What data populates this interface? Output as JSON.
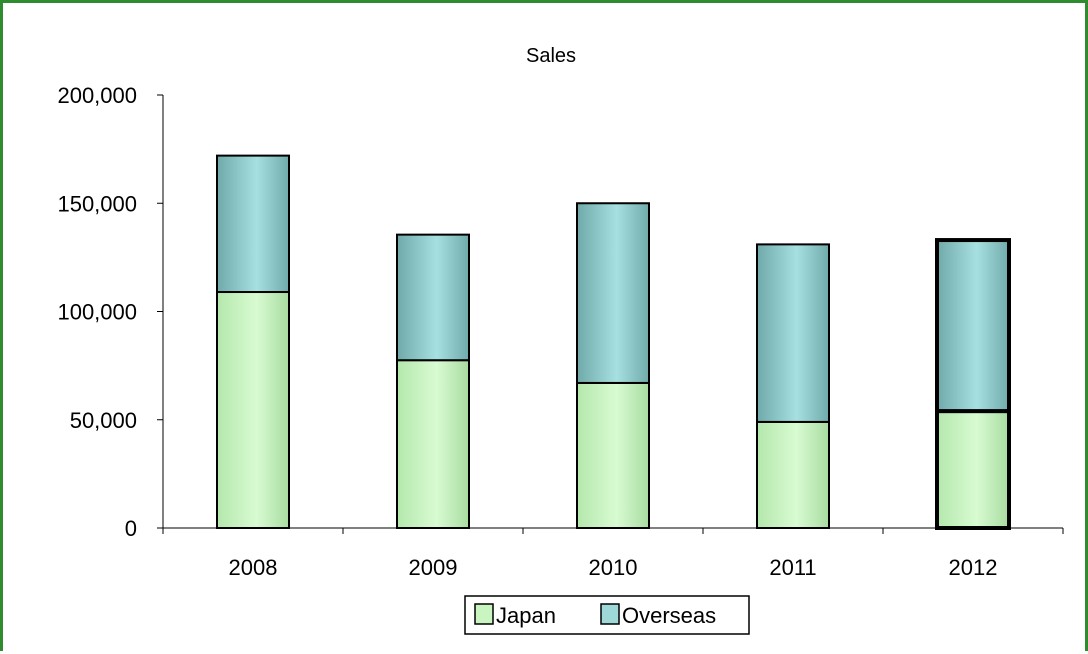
{
  "chart_data": {
    "type": "bar",
    "stacked": true,
    "title": "Sales",
    "xlabel": "",
    "ylabel": "",
    "categories": [
      "2008",
      "2009",
      "2010",
      "2011",
      "2012"
    ],
    "series": [
      {
        "name": "Japan",
        "values": [
          109000,
          77500,
          67000,
          49000,
          54000
        ],
        "color": "#c8f5c0"
      },
      {
        "name": "Overseas",
        "values": [
          63000,
          58000,
          83000,
          82000,
          79000
        ],
        "color": "#9fd8d8"
      }
    ],
    "ylim": [
      0,
      200000
    ],
    "yticks": [
      0,
      50000,
      100000,
      150000,
      200000
    ],
    "ytick_labels": [
      "0",
      "50,000",
      "100,000",
      "150,000",
      "200,000"
    ],
    "grid": false,
    "legend_position": "bottom",
    "highlight_category": "2012",
    "frame_color": "#2e8b2e"
  }
}
